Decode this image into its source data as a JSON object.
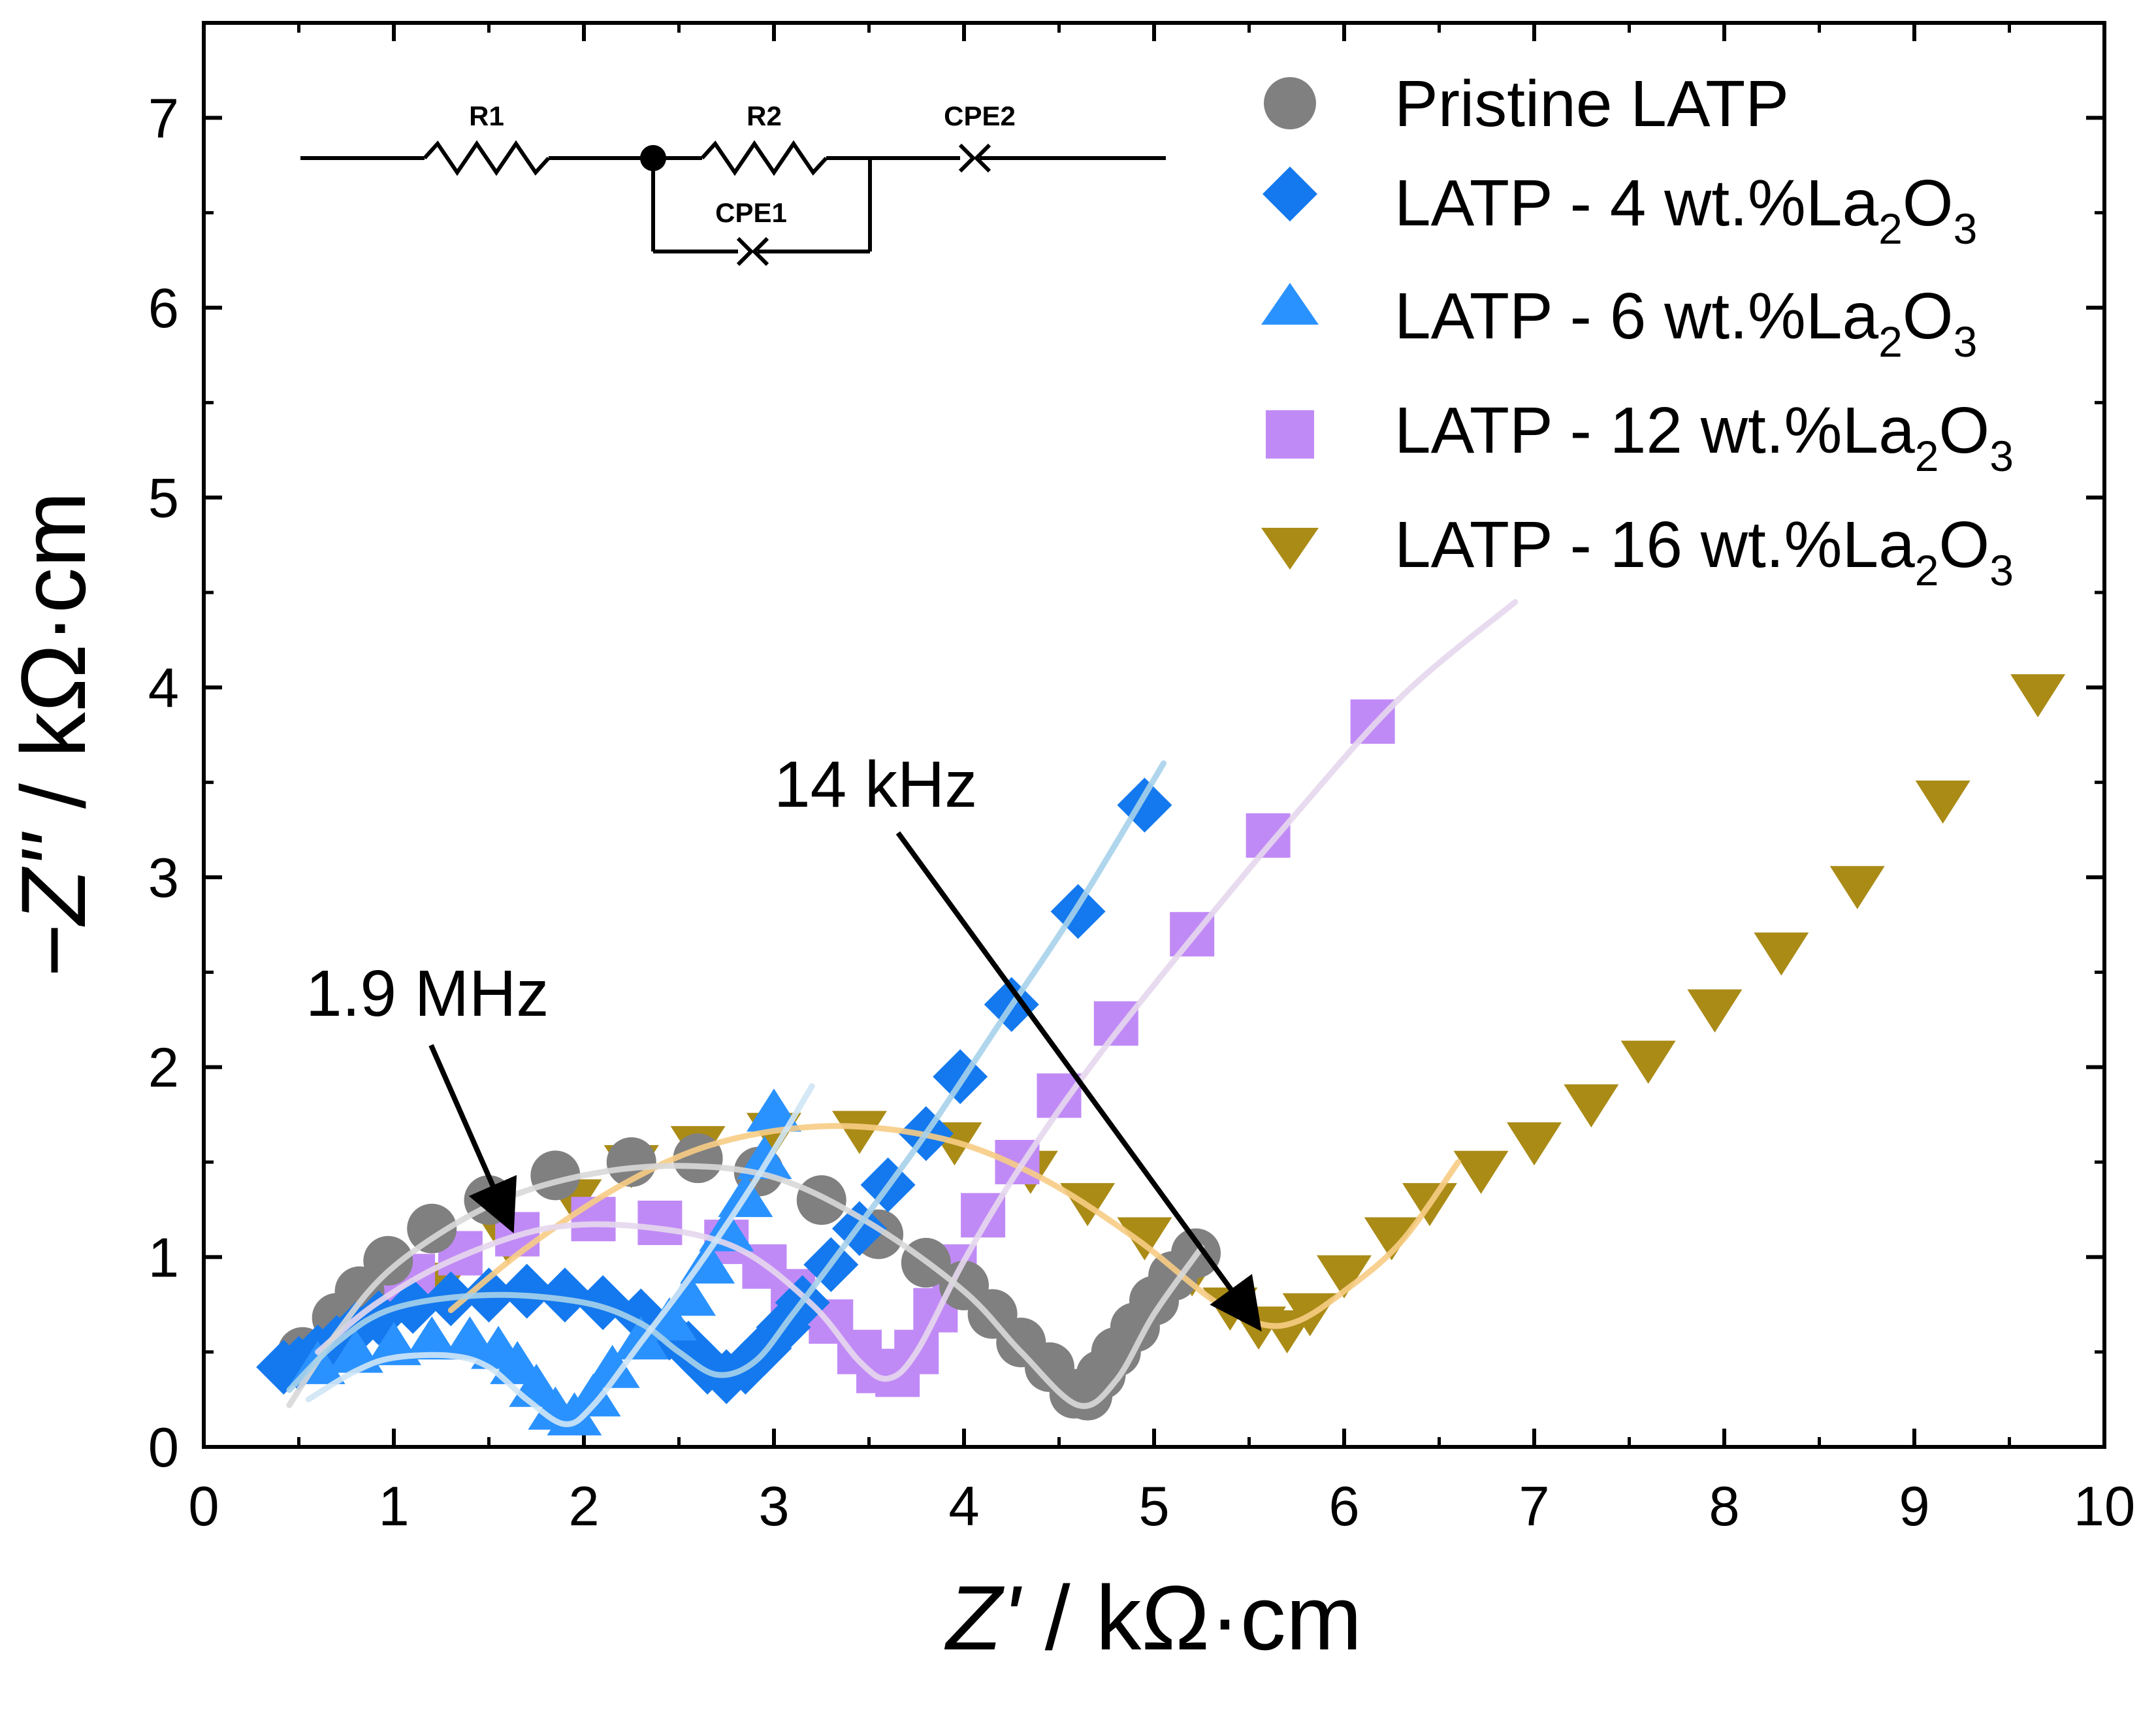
{
  "chart_data": {
    "type": "scatter",
    "xlabel_italic": "Z'",
    "xlabel_unit": " / kΩ·cm",
    "ylabel_italic": "−Z''",
    "ylabel_unit": " / kΩ·cm",
    "xlim": [
      0,
      10
    ],
    "ylim": [
      0,
      7.5
    ],
    "xticks": [
      0,
      1,
      2,
      3,
      4,
      5,
      6,
      7,
      8,
      9,
      10
    ],
    "yticks": [
      0,
      1,
      2,
      3,
      4,
      5,
      6,
      7
    ],
    "legend_position": "top-right",
    "legend_text_main": [
      "Pristine LATP",
      "LATP - 4 wt.%La",
      "LATP - 6 wt.%La",
      "LATP - 12 wt.%La",
      "LATP - 16 wt.%La"
    ],
    "legend_sub_2": "2",
    "legend_o": "O",
    "legend_sub_3": "3",
    "circuit": {
      "r1": "R1",
      "r2": "R2",
      "cpe1": "CPE1",
      "cpe2": "CPE2"
    },
    "annotations": [
      {
        "text": "1.9 MHz",
        "points_to": [
          1.62,
          1.15
        ]
      },
      {
        "text": "14 kHz",
        "points_to": [
          5.55,
          0.63
        ]
      }
    ],
    "series": [
      {
        "name": "Pristine LATP",
        "marker": "circle",
        "color": "#808080",
        "fit_color": "#d8d8d8",
        "points": [
          [
            0.52,
            0.5
          ],
          [
            0.7,
            0.68
          ],
          [
            0.82,
            0.82
          ],
          [
            0.97,
            0.98
          ],
          [
            1.2,
            1.15
          ],
          [
            1.5,
            1.3
          ],
          [
            1.85,
            1.43
          ],
          [
            2.25,
            1.5
          ],
          [
            2.6,
            1.52
          ],
          [
            2.92,
            1.45
          ],
          [
            3.25,
            1.3
          ],
          [
            3.55,
            1.12
          ],
          [
            3.8,
            0.97
          ],
          [
            4.0,
            0.85
          ],
          [
            4.15,
            0.7
          ],
          [
            4.3,
            0.55
          ],
          [
            4.45,
            0.42
          ],
          [
            4.58,
            0.28
          ],
          [
            4.65,
            0.27
          ],
          [
            4.72,
            0.38
          ],
          [
            4.8,
            0.5
          ],
          [
            4.9,
            0.63
          ],
          [
            5.0,
            0.77
          ],
          [
            5.1,
            0.9
          ],
          [
            5.22,
            1.02
          ]
        ],
        "fit": [
          [
            0.45,
            0.22
          ],
          [
            0.7,
            0.6
          ],
          [
            1.0,
            0.95
          ],
          [
            1.5,
            1.27
          ],
          [
            2.0,
            1.43
          ],
          [
            2.5,
            1.48
          ],
          [
            3.0,
            1.42
          ],
          [
            3.5,
            1.18
          ],
          [
            4.0,
            0.82
          ],
          [
            4.3,
            0.5
          ],
          [
            4.6,
            0.22
          ],
          [
            4.8,
            0.35
          ],
          [
            5.0,
            0.7
          ],
          [
            5.25,
            1.05
          ]
        ]
      },
      {
        "name": "LATP - 4 wt.%La2O3",
        "marker": "diamond",
        "color": "#1479ee",
        "fit_color": "#a6d2ea",
        "points": [
          [
            0.42,
            0.42
          ],
          [
            0.5,
            0.44
          ],
          [
            0.6,
            0.5
          ],
          [
            0.7,
            0.55
          ],
          [
            0.8,
            0.62
          ],
          [
            0.92,
            0.68
          ],
          [
            1.1,
            0.74
          ],
          [
            1.3,
            0.78
          ],
          [
            1.5,
            0.8
          ],
          [
            1.7,
            0.82
          ],
          [
            1.9,
            0.8
          ],
          [
            2.1,
            0.76
          ],
          [
            2.3,
            0.69
          ],
          [
            2.45,
            0.6
          ],
          [
            2.55,
            0.52
          ],
          [
            2.65,
            0.42
          ],
          [
            2.75,
            0.37
          ],
          [
            2.85,
            0.42
          ],
          [
            2.95,
            0.52
          ],
          [
            3.05,
            0.63
          ],
          [
            3.15,
            0.76
          ],
          [
            3.3,
            0.96
          ],
          [
            3.45,
            1.15
          ],
          [
            3.6,
            1.38
          ],
          [
            3.8,
            1.65
          ],
          [
            3.98,
            1.95
          ],
          [
            4.25,
            2.33
          ],
          [
            4.6,
            2.82
          ],
          [
            4.95,
            3.38
          ]
        ],
        "fit": [
          [
            0.45,
            0.3
          ],
          [
            0.7,
            0.55
          ],
          [
            1.0,
            0.73
          ],
          [
            1.5,
            0.8
          ],
          [
            2.0,
            0.76
          ],
          [
            2.3,
            0.65
          ],
          [
            2.5,
            0.5
          ],
          [
            2.7,
            0.38
          ],
          [
            2.9,
            0.45
          ],
          [
            3.1,
            0.7
          ],
          [
            3.4,
            1.1
          ],
          [
            3.8,
            1.65
          ],
          [
            4.2,
            2.25
          ],
          [
            4.6,
            2.85
          ],
          [
            5.05,
            3.6
          ]
        ]
      },
      {
        "name": "LATP - 6 wt.%La2O3",
        "marker": "triangle-up",
        "color": "#2a92ff",
        "fit_color": "#cfe6f5",
        "points": [
          [
            0.6,
            0.42
          ],
          [
            0.8,
            0.48
          ],
          [
            1.0,
            0.52
          ],
          [
            1.2,
            0.55
          ],
          [
            1.4,
            0.55
          ],
          [
            1.55,
            0.5
          ],
          [
            1.65,
            0.42
          ],
          [
            1.75,
            0.3
          ],
          [
            1.85,
            0.18
          ],
          [
            1.95,
            0.15
          ],
          [
            2.05,
            0.25
          ],
          [
            2.15,
            0.4
          ],
          [
            2.3,
            0.55
          ],
          [
            2.45,
            0.65
          ],
          [
            2.55,
            0.78
          ],
          [
            2.65,
            0.95
          ],
          [
            2.75,
            1.12
          ],
          [
            2.85,
            1.3
          ],
          [
            2.95,
            1.5
          ],
          [
            3.0,
            1.75
          ]
        ],
        "fit": [
          [
            0.55,
            0.25
          ],
          [
            0.8,
            0.4
          ],
          [
            1.0,
            0.47
          ],
          [
            1.3,
            0.48
          ],
          [
            1.5,
            0.42
          ],
          [
            1.7,
            0.25
          ],
          [
            1.9,
            0.12
          ],
          [
            2.05,
            0.22
          ],
          [
            2.3,
            0.55
          ],
          [
            2.6,
            0.95
          ],
          [
            2.9,
            1.4
          ],
          [
            3.2,
            1.9
          ]
        ]
      },
      {
        "name": "LATP - 12 wt.%La2O3",
        "marker": "square",
        "color": "#c08af6",
        "fit_color": "#e5d7ed",
        "points": [
          [
            0.72,
            0.65
          ],
          [
            0.9,
            0.78
          ],
          [
            1.1,
            0.9
          ],
          [
            1.35,
            1.02
          ],
          [
            1.65,
            1.12
          ],
          [
            2.05,
            1.2
          ],
          [
            2.4,
            1.18
          ],
          [
            2.75,
            1.08
          ],
          [
            2.95,
            0.95
          ],
          [
            3.1,
            0.82
          ],
          [
            3.3,
            0.66
          ],
          [
            3.45,
            0.5
          ],
          [
            3.55,
            0.4
          ],
          [
            3.65,
            0.38
          ],
          [
            3.75,
            0.5
          ],
          [
            3.85,
            0.72
          ],
          [
            3.95,
            0.95
          ],
          [
            4.1,
            1.22
          ],
          [
            4.28,
            1.5
          ],
          [
            4.5,
            1.85
          ],
          [
            4.8,
            2.23
          ],
          [
            5.2,
            2.7
          ],
          [
            5.6,
            3.22
          ],
          [
            6.15,
            3.82
          ]
        ],
        "fit": [
          [
            0.6,
            0.5
          ],
          [
            0.9,
            0.75
          ],
          [
            1.3,
            0.98
          ],
          [
            1.8,
            1.15
          ],
          [
            2.3,
            1.16
          ],
          [
            2.8,
            1.05
          ],
          [
            3.2,
            0.75
          ],
          [
            3.45,
            0.45
          ],
          [
            3.6,
            0.36
          ],
          [
            3.75,
            0.5
          ],
          [
            4.0,
            0.98
          ],
          [
            4.3,
            1.48
          ],
          [
            4.7,
            2.05
          ],
          [
            5.2,
            2.68
          ],
          [
            5.7,
            3.28
          ],
          [
            6.3,
            3.95
          ],
          [
            6.9,
            4.45
          ]
        ]
      },
      {
        "name": "LATP - 16 wt.%La2O3",
        "marker": "triangle-down",
        "color": "#aa8b16",
        "fit_color": "#f7cc84",
        "points": [
          [
            1.25,
            0.88
          ],
          [
            1.6,
            1.1
          ],
          [
            1.95,
            1.32
          ],
          [
            2.25,
            1.5
          ],
          [
            2.6,
            1.6
          ],
          [
            3.0,
            1.67
          ],
          [
            3.45,
            1.68
          ],
          [
            3.95,
            1.62
          ],
          [
            4.35,
            1.47
          ],
          [
            4.65,
            1.3
          ],
          [
            4.95,
            1.12
          ],
          [
            5.2,
            0.93
          ],
          [
            5.4,
            0.75
          ],
          [
            5.55,
            0.65
          ],
          [
            5.7,
            0.63
          ],
          [
            5.82,
            0.72
          ],
          [
            6.0,
            0.92
          ],
          [
            6.25,
            1.12
          ],
          [
            6.45,
            1.3
          ],
          [
            6.72,
            1.47
          ],
          [
            7.0,
            1.62
          ],
          [
            7.3,
            1.82
          ],
          [
            7.6,
            2.05
          ],
          [
            7.95,
            2.32
          ],
          [
            8.3,
            2.62
          ],
          [
            8.7,
            2.97
          ],
          [
            9.15,
            3.42
          ],
          [
            9.65,
            3.98
          ]
        ],
        "fit": [
          [
            1.3,
            0.72
          ],
          [
            1.7,
            1.05
          ],
          [
            2.2,
            1.38
          ],
          [
            2.7,
            1.6
          ],
          [
            3.3,
            1.69
          ],
          [
            3.9,
            1.62
          ],
          [
            4.4,
            1.42
          ],
          [
            4.9,
            1.1
          ],
          [
            5.3,
            0.78
          ],
          [
            5.55,
            0.65
          ],
          [
            5.75,
            0.66
          ],
          [
            6.0,
            0.82
          ],
          [
            6.3,
            1.08
          ],
          [
            6.6,
            1.5
          ]
        ]
      }
    ]
  }
}
